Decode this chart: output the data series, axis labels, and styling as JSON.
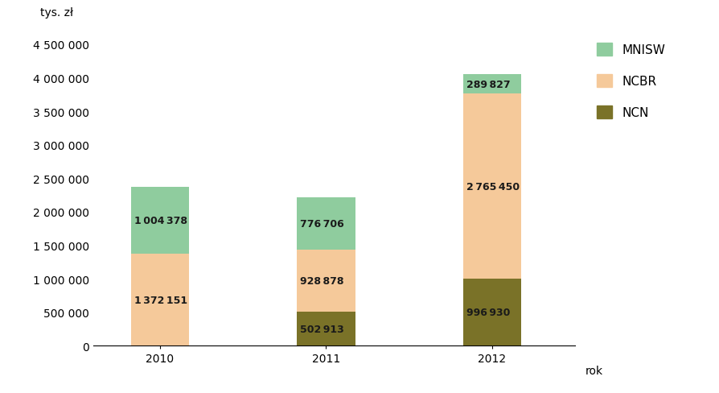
{
  "years": [
    "2010",
    "2011",
    "2012"
  ],
  "ncn": [
    0,
    502913,
    996930
  ],
  "ncbr": [
    1372151,
    928878,
    2765450
  ],
  "mnisw": [
    1004378,
    776706,
    289827
  ],
  "ncn_color": "#7a7228",
  "ncbr_color": "#f5c99a",
  "mnisw_color": "#8fcc9e",
  "ylabel": "tys. zł",
  "xlabel": "rok",
  "ylim": [
    0,
    4700000
  ],
  "yticks": [
    0,
    500000,
    1000000,
    1500000,
    2000000,
    2500000,
    3000000,
    3500000,
    4000000,
    4500000
  ],
  "ytick_labels": [
    "0",
    "500 000",
    "1 000 000",
    "1 500 000",
    "2 000 000",
    "2 500 000",
    "3 000 000",
    "3 500 000",
    "4 000 000",
    "4 500 000"
  ],
  "legend_labels": [
    "MNISW",
    "NCBR",
    "NCN"
  ],
  "bar_width": 0.35,
  "label_fontsize": 9,
  "axis_fontsize": 10,
  "legend_fontsize": 11,
  "text_color": "#1a1a1a",
  "background_color": "#ffffff"
}
